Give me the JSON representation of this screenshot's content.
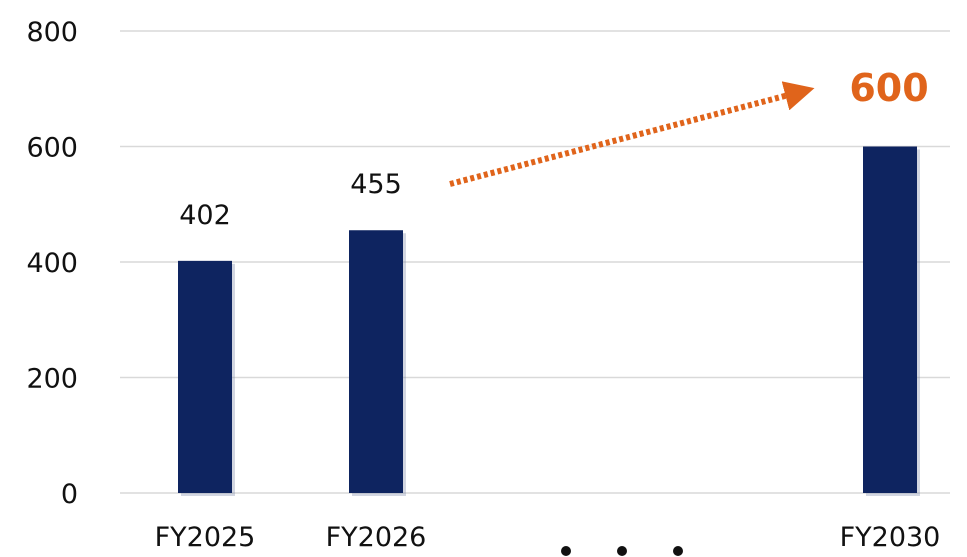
{
  "colors": {
    "bar": "#0e2460",
    "accent": "#e0641b",
    "grid": "#d9d9d9",
    "title": "#1a4fa6"
  },
  "chart_data": {
    "type": "bar",
    "title": "",
    "unit_label": "",
    "xlabel": "",
    "ylabel": "",
    "ylim": [
      0,
      800
    ],
    "yticks": [
      0,
      200,
      400,
      600,
      800
    ],
    "grid": true,
    "categories": [
      "FY2025",
      "FY2026",
      "FY2030"
    ],
    "values": [
      402,
      455,
      600
    ],
    "value_labels": [
      "402",
      "455",
      "600"
    ],
    "omission_marker": "・・・",
    "trend_arrow": {
      "from": "FY2026",
      "to": "FY2030",
      "style": "dotted"
    }
  }
}
